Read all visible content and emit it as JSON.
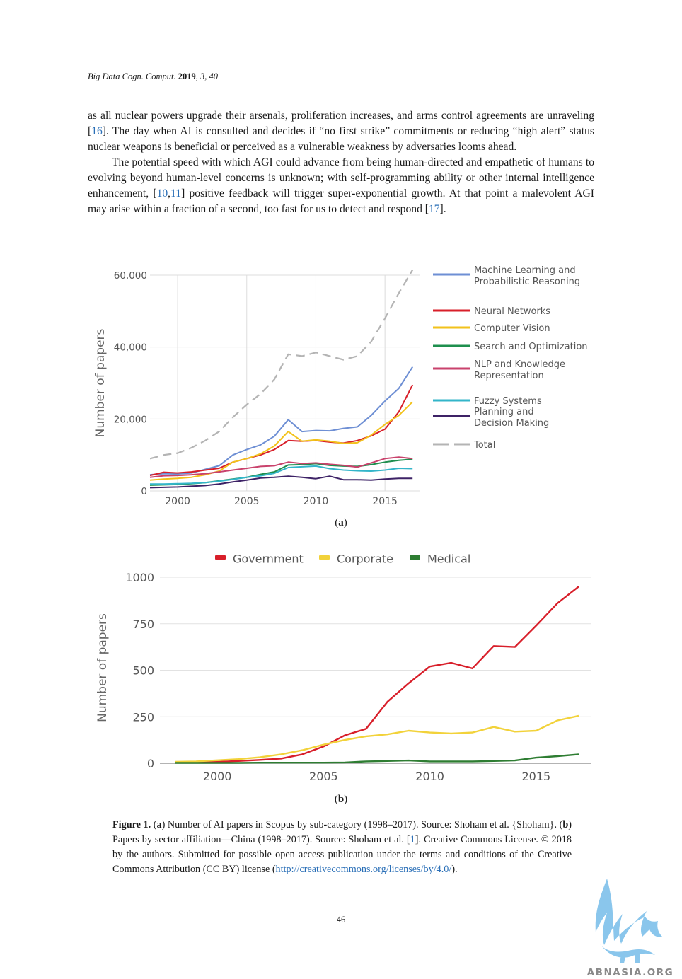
{
  "header": {
    "journal": "Big Data Cogn. Comput.",
    "year": "2019",
    "volume_issue": ", 3, 40"
  },
  "body": {
    "p1": "as all nuclear powers upgrade their arsenals, proliferation increases, and arms control agreements are unraveling [",
    "p1_cite1": "16",
    "p1_b": "]. The day when AI is consulted and decides if “no first strike” commitments or reducing “high alert” status nuclear weapons is beneficial or perceived as a vulnerable weakness by adversaries looms ahead.",
    "p2": "The potential speed with which AGI could advance from being human-directed and empathetic of humans to evolving beyond human-level concerns is unknown; with self-programming ability or other internal intelligence enhancement, [",
    "p2_cite1": "10",
    "p2_sep": ",",
    "p2_cite2": "11",
    "p2_b": "] positive feedback will trigger super-exponential growth. At that point a malevolent AGI may arise within a fraction of a second, too fast for us to detect and respond [",
    "p2_cite3": "17",
    "p2_c": "]."
  },
  "figure": {
    "label_a": "a",
    "label_b": "b",
    "caption_lead": "Figure 1.",
    "caption_a_letter": "a",
    "caption_a": ") Number of AI papers in Scopus by sub-category (1998–2017). Source: Shoham et al. {Shoham}. (",
    "caption_b_letter": "b",
    "caption_b": ") Papers by sector affiliation—China (1998–2017). Source: Shoham et al. [",
    "caption_cite": "1",
    "caption_c": "]. Creative Commons License. © 2018 by the authors. Submitted for possible open access publication under the terms and conditions of the Creative Commons Attribution (CC BY) license (",
    "caption_url": "http://creativecommons.org/licenses/by/4.0/",
    "caption_end": ")."
  },
  "page_number": "46",
  "watermark_text": "ABNASIA.ORG",
  "chart_data": [
    {
      "type": "line",
      "ylabel": "Number of papers",
      "ylim": [
        0,
        60000
      ],
      "yticks": [
        0,
        20000,
        40000,
        60000
      ],
      "ytick_labels": [
        "0",
        "20,000",
        "40,000",
        "60,000"
      ],
      "xlim": [
        1998,
        2017
      ],
      "xticks": [
        2000,
        2005,
        2010,
        2015
      ],
      "grid": true,
      "legend": "right",
      "x": [
        1998,
        1999,
        2000,
        2001,
        2002,
        2003,
        2004,
        2005,
        2006,
        2007,
        2008,
        2009,
        2010,
        2011,
        2012,
        2013,
        2014,
        2015,
        2016,
        2017
      ],
      "series": [
        {
          "name": "Machine Learning and Probabilistic Reasoning",
          "color": "#6e8fd4",
          "dashed": false,
          "values": [
            4500,
            4800,
            4700,
            5000,
            6000,
            7000,
            10000,
            11500,
            12800,
            15200,
            19800,
            16500,
            16800,
            16700,
            17400,
            17800,
            21000,
            25000,
            28500,
            34500
          ]
        },
        {
          "name": "Neural Networks",
          "color": "#d81f2a",
          "dashed": false,
          "values": [
            4300,
            5200,
            5000,
            5300,
            5800,
            6300,
            8000,
            9000,
            10000,
            11500,
            14000,
            13800,
            14000,
            13600,
            13300,
            14000,
            15300,
            17200,
            22000,
            29500
          ]
        },
        {
          "name": "Computer Vision",
          "color": "#f2c21b",
          "dashed": false,
          "values": [
            3000,
            3300,
            3500,
            3800,
            4500,
            5500,
            8000,
            9000,
            10300,
            12500,
            16500,
            13800,
            14200,
            13800,
            13200,
            13400,
            15500,
            18500,
            21000,
            24800
          ]
        },
        {
          "name": "Search and Optimization",
          "color": "#1e8f4e",
          "dashed": false,
          "values": [
            1600,
            1700,
            1800,
            2000,
            2300,
            2800,
            3300,
            3800,
            4600,
            5300,
            7200,
            7300,
            7600,
            7100,
            6900,
            6800,
            7300,
            8000,
            8500,
            8800
          ]
        },
        {
          "name": "NLP and Knowledge Representation",
          "color": "#c9426c",
          "dashed": false,
          "values": [
            3800,
            4200,
            4300,
            4500,
            4800,
            5300,
            5800,
            6300,
            6800,
            7000,
            8000,
            7600,
            7800,
            7400,
            7100,
            6600,
            7800,
            9000,
            9400,
            9000
          ]
        },
        {
          "name": "Fuzzy Systems",
          "color": "#33b5c9",
          "dashed": false,
          "values": [
            1900,
            1900,
            2000,
            2100,
            2300,
            2700,
            3200,
            3800,
            4200,
            4900,
            6500,
            6700,
            6900,
            6200,
            5800,
            5600,
            5500,
            5800,
            6300,
            6200
          ]
        },
        {
          "name": "Planning and Decision Making",
          "color": "#3d2266",
          "dashed": false,
          "values": [
            900,
            1000,
            1100,
            1300,
            1500,
            1900,
            2500,
            3000,
            3600,
            3800,
            4100,
            3800,
            3400,
            4100,
            3100,
            3100,
            3000,
            3300,
            3500,
            3500
          ]
        },
        {
          "name": "Total",
          "color": "#b4b4b4",
          "dashed": true,
          "values": [
            9000,
            10000,
            10500,
            12000,
            14000,
            16500,
            20500,
            24000,
            27000,
            31000,
            38000,
            37500,
            38500,
            37500,
            36500,
            37500,
            41500,
            48000,
            55000,
            61500
          ]
        }
      ]
    },
    {
      "type": "line",
      "ylabel": "Number of papers",
      "ylim": [
        0,
        1000
      ],
      "yticks": [
        0,
        250,
        500,
        750,
        1000
      ],
      "ytick_labels": [
        "0",
        "250",
        "500",
        "750",
        "1000"
      ],
      "xlim": [
        1998,
        2017
      ],
      "xticks": [
        2000,
        2005,
        2010,
        2015
      ],
      "grid": true,
      "legend": "top",
      "x": [
        1998,
        1999,
        2000,
        2001,
        2002,
        2003,
        2004,
        2005,
        2006,
        2007,
        2008,
        2009,
        2010,
        2011,
        2012,
        2013,
        2014,
        2015,
        2016,
        2017
      ],
      "series": [
        {
          "name": "Government",
          "color": "#d81f2a",
          "values": [
            5,
            5,
            8,
            12,
            18,
            25,
            48,
            90,
            150,
            185,
            330,
            430,
            520,
            540,
            510,
            630,
            625,
            740,
            860,
            950
          ]
        },
        {
          "name": "Corporate",
          "color": "#f2d23a",
          "values": [
            8,
            10,
            16,
            22,
            32,
            48,
            70,
            100,
            125,
            145,
            155,
            175,
            165,
            160,
            165,
            195,
            170,
            175,
            230,
            255
          ]
        },
        {
          "name": "Medical",
          "color": "#2e7d32",
          "values": [
            2,
            2,
            2,
            2,
            3,
            3,
            3,
            3,
            4,
            10,
            12,
            15,
            10,
            10,
            10,
            12,
            15,
            30,
            38,
            48
          ]
        }
      ]
    }
  ]
}
